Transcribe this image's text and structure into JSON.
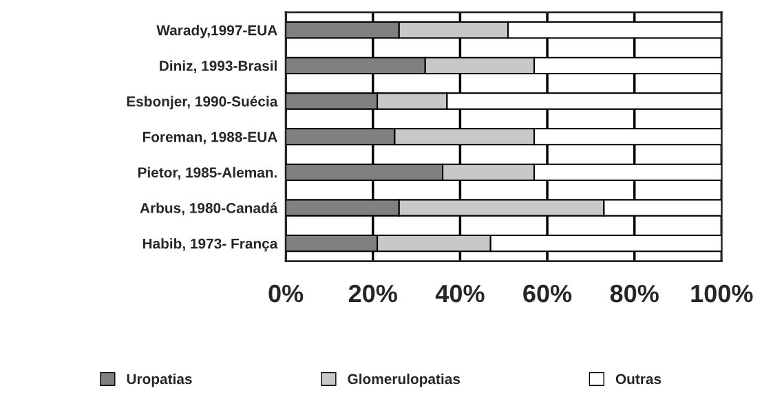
{
  "chart_data": {
    "type": "bar",
    "orientation": "horizontal",
    "stacked": true,
    "categories": [
      "Warady,1997-EUA",
      "Diniz, 1993-Brasil",
      "Esbonjer, 1990-Suécia",
      "Foreman, 1988-EUA",
      "Pietor, 1985-Aleman.",
      "Arbus, 1980-Canadá",
      "Habib, 1973- França"
    ],
    "series": [
      {
        "name": "Uropatias",
        "color": "#808080",
        "values": [
          26,
          32,
          21,
          25,
          36,
          26,
          21
        ]
      },
      {
        "name": "Glomerulopatias",
        "color": "#c8c8c8",
        "values": [
          25,
          25,
          16,
          32,
          21,
          47,
          26
        ]
      },
      {
        "name": "Outras",
        "color": "#ffffff",
        "values": [
          49,
          43,
          63,
          43,
          43,
          27,
          53
        ]
      }
    ],
    "xlim": [
      0,
      100
    ],
    "xticks": [
      {
        "value": 0,
        "label": "0%"
      },
      {
        "value": 20,
        "label": "20%"
      },
      {
        "value": 40,
        "label": "40%"
      },
      {
        "value": 60,
        "label": "60%"
      },
      {
        "value": 80,
        "label": "80%"
      },
      {
        "value": 100,
        "label": "100%"
      }
    ],
    "grid": "x",
    "legend": "bottom"
  }
}
